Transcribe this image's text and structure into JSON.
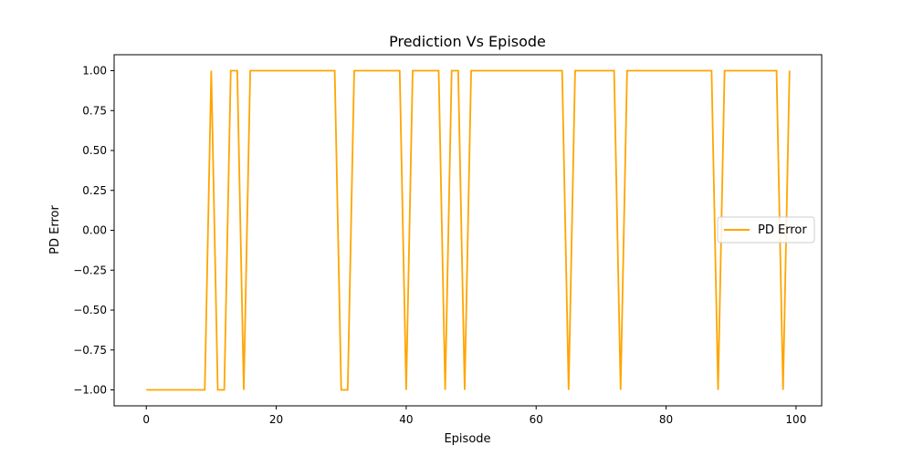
{
  "chart_data": {
    "type": "line",
    "title": "Prediction Vs Episode",
    "xlabel": "Episode",
    "ylabel": "PD Error",
    "xlim": [
      -4.95,
      103.95
    ],
    "ylim": [
      -1.1,
      1.1
    ],
    "x_ticks": [
      0,
      20,
      40,
      60,
      80,
      100
    ],
    "x_tick_labels": [
      "0",
      "20",
      "40",
      "60",
      "80",
      "100"
    ],
    "y_ticks": [
      -1.0,
      -0.75,
      -0.5,
      -0.25,
      0.0,
      0.25,
      0.5,
      0.75,
      1.0
    ],
    "y_tick_labels": [
      "−1.00",
      "−0.75",
      "−0.50",
      "−0.25",
      "0.00",
      "0.25",
      "0.50",
      "0.75",
      "1.00"
    ],
    "grid": false,
    "legend_position": "center-right",
    "series": [
      {
        "name": "PD Error",
        "color": "#FFA500",
        "x": [
          0,
          1,
          2,
          3,
          4,
          5,
          6,
          7,
          8,
          9,
          10,
          11,
          12,
          13,
          14,
          15,
          16,
          17,
          18,
          19,
          20,
          21,
          22,
          23,
          24,
          25,
          26,
          27,
          28,
          29,
          30,
          31,
          32,
          33,
          34,
          35,
          36,
          37,
          38,
          39,
          40,
          41,
          42,
          43,
          44,
          45,
          46,
          47,
          48,
          49,
          50,
          51,
          52,
          53,
          54,
          55,
          56,
          57,
          58,
          59,
          60,
          61,
          62,
          63,
          64,
          65,
          66,
          67,
          68,
          69,
          70,
          71,
          72,
          73,
          74,
          75,
          76,
          77,
          78,
          79,
          80,
          81,
          82,
          83,
          84,
          85,
          86,
          87,
          88,
          89,
          90,
          91,
          92,
          93,
          94,
          95,
          96,
          97,
          98,
          99
        ],
        "y": [
          -1,
          -1,
          -1,
          -1,
          -1,
          -1,
          -1,
          -1,
          -1,
          -1,
          1,
          -1,
          -1,
          1,
          1,
          -1,
          1,
          1,
          1,
          1,
          1,
          1,
          1,
          1,
          1,
          1,
          1,
          1,
          1,
          1,
          -1,
          -1,
          1,
          1,
          1,
          1,
          1,
          1,
          1,
          1,
          -1,
          1,
          1,
          1,
          1,
          1,
          -1,
          1,
          1,
          -1,
          1,
          1,
          1,
          1,
          1,
          1,
          1,
          1,
          1,
          1,
          1,
          1,
          1,
          1,
          1,
          -1,
          1,
          1,
          1,
          1,
          1,
          1,
          1,
          -1,
          1,
          1,
          1,
          1,
          1,
          1,
          1,
          1,
          1,
          1,
          1,
          1,
          1,
          1,
          -1,
          1,
          1,
          1,
          1,
          1,
          1,
          1,
          1,
          1,
          -1,
          1
        ]
      }
    ]
  }
}
